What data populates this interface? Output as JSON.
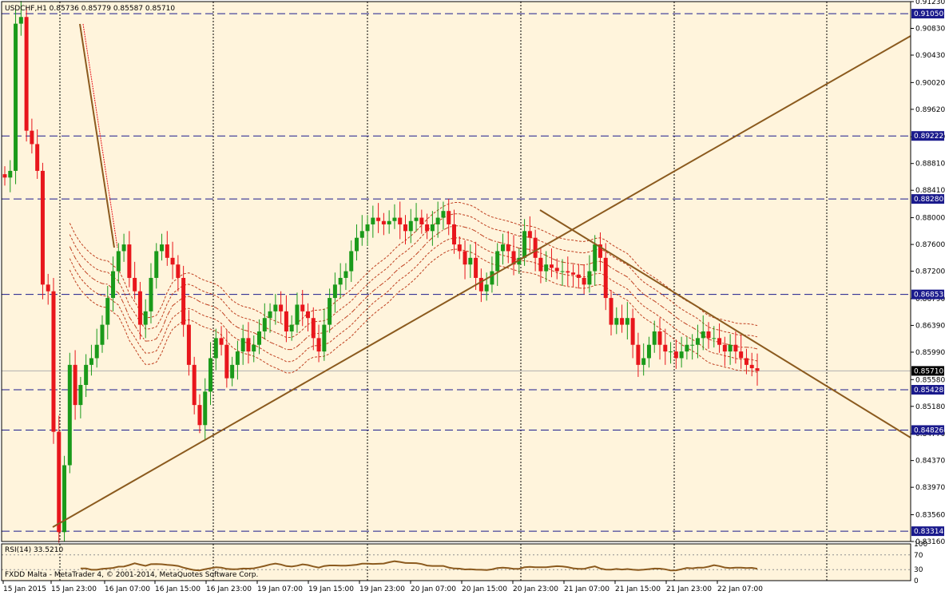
{
  "header": {
    "symbol_line": "USDCHF,H1  0.85736 0.85779 0.85587 0.85710"
  },
  "rsi_panel": {
    "label": "RSI(14) 33.5210",
    "levels": [
      "100",
      "70",
      "30",
      "0"
    ],
    "watermark": "FXDD Malta - MetaTrader 4, © 2001-2014, MetaQuotes Software Corp."
  },
  "colors": {
    "background": "#fff4dc",
    "bull": "#1a9a1a",
    "bear": "#e8161c",
    "hline": "#1a1a8c",
    "trend": "#8b5a1e",
    "ma": "#c04020",
    "label_bg": "#1a1a8c"
  },
  "chart_data": [
    {
      "type": "candlestick",
      "symbol": "USDCHF",
      "timeframe": "H1",
      "ohlc_header": {
        "open": 0.85736,
        "high": 0.85779,
        "low": 0.85587,
        "close": 0.8571
      },
      "ylim": [
        0.8316,
        0.9123
      ],
      "y_ticks": [
        "0.91230",
        "0.90830",
        "0.90430",
        "0.90020",
        "0.89620",
        "0.89210",
        "0.88810",
        "0.88410",
        "0.88000",
        "0.87600",
        "0.87200",
        "0.86790",
        "0.86390",
        "0.85990",
        "0.85580",
        "0.85180",
        "0.84770",
        "0.84370",
        "0.83970",
        "0.83560",
        "0.83160"
      ],
      "x_ticks": [
        "15 Jan 2015",
        "15 Jan 23:00",
        "16 Jan 07:00",
        "16 Jan 15:00",
        "16 Jan 23:00",
        "19 Jan 07:00",
        "19 Jan 15:00",
        "19 Jan 23:00",
        "20 Jan 07:00",
        "20 Jan 15:00",
        "20 Jan 23:00",
        "21 Jan 07:00",
        "21 Jan 15:00",
        "21 Jan 23:00",
        "22 Jan 07:00"
      ],
      "current_price": "0.85710",
      "horizontal_levels": [
        "0.91050",
        "0.89222",
        "0.88280",
        "0.86853",
        "0.85428",
        "0.84826",
        "0.83314"
      ],
      "closes": [
        0.886,
        0.887,
        0.909,
        0.91,
        0.893,
        0.891,
        0.887,
        0.87,
        0.869,
        0.848,
        0.833,
        0.843,
        0.858,
        0.852,
        0.855,
        0.858,
        0.859,
        0.861,
        0.864,
        0.868,
        0.872,
        0.875,
        0.876,
        0.871,
        0.869,
        0.864,
        0.866,
        0.871,
        0.875,
        0.876,
        0.874,
        0.873,
        0.871,
        0.864,
        0.858,
        0.852,
        0.849,
        0.854,
        0.859,
        0.862,
        0.861,
        0.856,
        0.858,
        0.86,
        0.862,
        0.86,
        0.861,
        0.863,
        0.865,
        0.866,
        0.867,
        0.866,
        0.863,
        0.864,
        0.867,
        0.866,
        0.865,
        0.862,
        0.86,
        0.864,
        0.868,
        0.87,
        0.871,
        0.872,
        0.875,
        0.877,
        0.878,
        0.879,
        0.88,
        0.8795,
        0.879,
        0.8795,
        0.88,
        0.879,
        0.878,
        0.8795,
        0.88,
        0.879,
        0.878,
        0.879,
        0.88,
        0.881,
        0.879,
        0.876,
        0.875,
        0.873,
        0.874,
        0.871,
        0.869,
        0.87,
        0.872,
        0.875,
        0.876,
        0.875,
        0.873,
        0.874,
        0.878,
        0.877,
        0.874,
        0.872,
        0.873,
        0.8725,
        0.872,
        0.872,
        0.8718,
        0.8715,
        0.871,
        0.87,
        0.872,
        0.876,
        0.874,
        0.868,
        0.864,
        0.865,
        0.864,
        0.865,
        0.861,
        0.858,
        0.859,
        0.861,
        0.863,
        0.861,
        0.86,
        0.86,
        0.859,
        0.86,
        0.861,
        0.861,
        0.862,
        0.863,
        0.862,
        0.862,
        0.861,
        0.86,
        0.861,
        0.86,
        0.859,
        0.858,
        0.8575,
        0.8571
      ]
    },
    {
      "type": "line",
      "name": "RSI(14)",
      "value": 33.521,
      "ylim": [
        0,
        100
      ],
      "levels": [
        30,
        70
      ]
    }
  ]
}
